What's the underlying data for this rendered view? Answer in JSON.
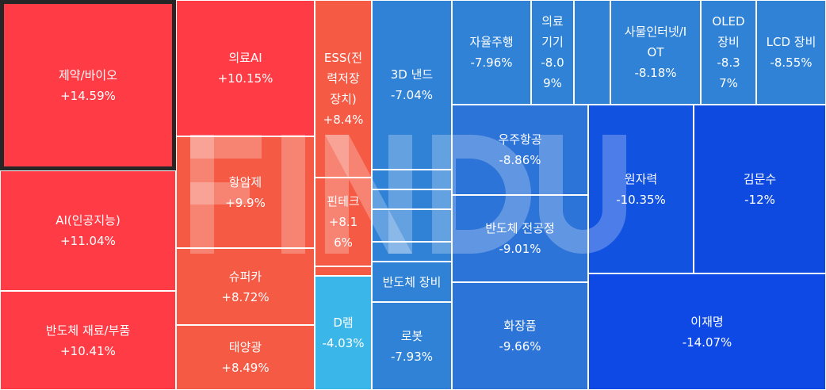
{
  "chart_data": {
    "type": "treemap",
    "tiles": [
      {
        "id": "t1",
        "name": "제약/바이오",
        "value": "+14.59%",
        "color": "#FF3B45",
        "selected": true
      },
      {
        "id": "t2",
        "name": "AI(인공지능)",
        "value": "+11.04%",
        "color": "#FF3B45"
      },
      {
        "id": "t3",
        "name": "반도체 재료/부품",
        "value": "+10.41%",
        "color": "#FF3B45"
      },
      {
        "id": "t4",
        "name": "의료AI",
        "value": "+10.15%",
        "color": "#FF3B45"
      },
      {
        "id": "t5",
        "name": "항암제",
        "value": "+9.9%",
        "color": "#F45A44"
      },
      {
        "id": "t6",
        "name": "슈퍼카",
        "value": "+8.72%",
        "color": "#F45A44"
      },
      {
        "id": "t7",
        "name": "태양광",
        "value": "+8.49%",
        "color": "#F45A44"
      },
      {
        "id": "t8",
        "name": "ESS(전\n력저장\n장치)",
        "value": "+8.4%",
        "color": "#F45A44"
      },
      {
        "id": "t9",
        "name": "핀테크",
        "value": "+8.1\n6%",
        "color": "#F45A44"
      },
      {
        "id": "t10",
        "name": "",
        "value": "",
        "color": "#F45A44"
      },
      {
        "id": "t11",
        "name": "D램",
        "value": "-4.03%",
        "color": "#3AB7E8"
      },
      {
        "id": "t12",
        "name": "3D 낸드",
        "value": "-7.04%",
        "color": "#2F82D6"
      },
      {
        "id": "t13",
        "name": "",
        "value": "",
        "color": "#2F82D6"
      },
      {
        "id": "t14",
        "name": "",
        "value": "",
        "color": "#2F82D6"
      },
      {
        "id": "t15",
        "name": "",
        "value": "",
        "color": "#2F82D6"
      },
      {
        "id": "t16",
        "name": "",
        "value": "",
        "color": "#2F82D6"
      },
      {
        "id": "t17",
        "name": "반도체 장비",
        "value": "",
        "color": "#2F82D6"
      },
      {
        "id": "t18",
        "name": "로봇",
        "value": "-7.93%",
        "color": "#2F82D6"
      },
      {
        "id": "t19",
        "name": "자율주행",
        "value": "-7.96%",
        "color": "#2F82D6"
      },
      {
        "id": "t20",
        "name": "의료\n기기",
        "value": "-8.0\n9%",
        "color": "#2F82D6"
      },
      {
        "id": "t21",
        "name": "",
        "value": "",
        "color": "#2F82D6"
      },
      {
        "id": "t22",
        "name": "사물인터넷/I\nOT",
        "value": "-8.18%",
        "color": "#2F82D6"
      },
      {
        "id": "t23",
        "name": "OLED\n장비",
        "value": "-8.3\n7%",
        "color": "#2F82D6"
      },
      {
        "id": "t24",
        "name": "LCD 장비",
        "value": "-8.55%",
        "color": "#2F82D6"
      },
      {
        "id": "t25",
        "name": "우주항공",
        "value": "-8.86%",
        "color": "#2D74D8"
      },
      {
        "id": "t26",
        "name": "반도체 전공정",
        "value": "-9.01%",
        "color": "#2D74D8"
      },
      {
        "id": "t27",
        "name": "화장품",
        "value": "-9.66%",
        "color": "#2D74D8"
      },
      {
        "id": "t28",
        "name": "원자력",
        "value": "-10.35%",
        "color": "#1252E0"
      },
      {
        "id": "t29",
        "name": "김문수",
        "value": "-12%",
        "color": "#0E4AE0"
      },
      {
        "id": "t30",
        "name": "이재명",
        "value": "-14.07%",
        "color": "#0E49E6"
      }
    ]
  }
}
